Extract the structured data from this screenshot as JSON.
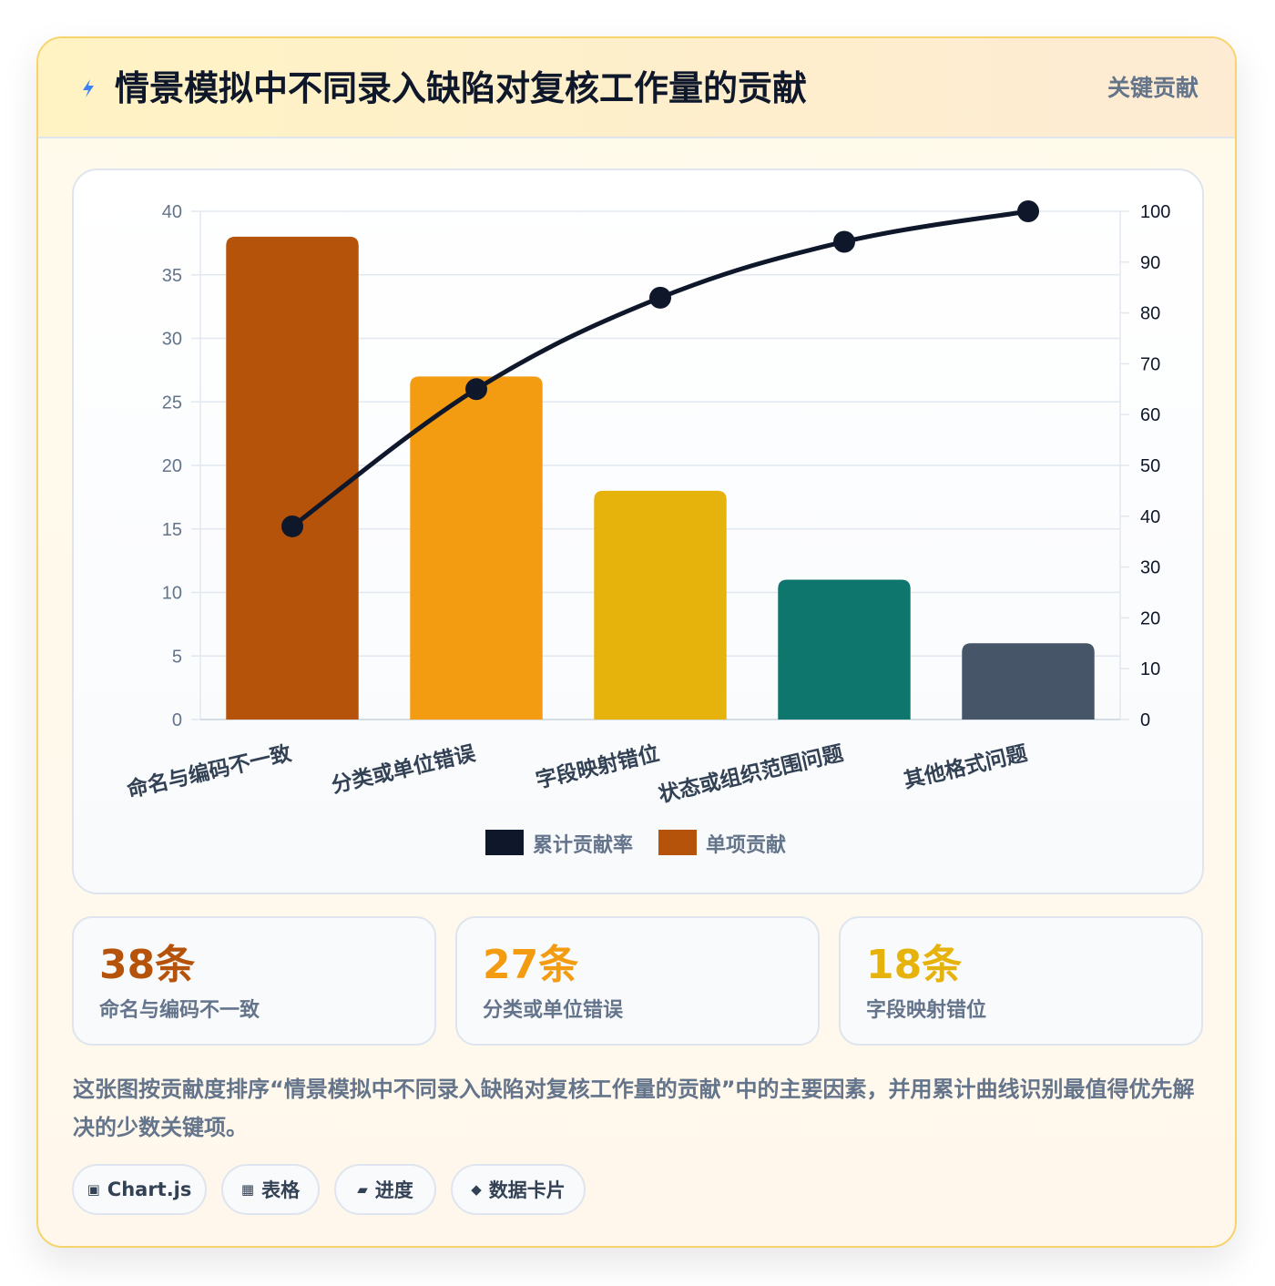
{
  "header": {
    "title": "情景模拟中不同录入缺陷对复核工作量的贡献",
    "badge": "关键贡献",
    "icon": "lightning-icon"
  },
  "chart_data": {
    "type": "bar",
    "categories": [
      "命名与编码不一致",
      "分类或单位错误",
      "字段映射错位",
      "状态或组织范围问题",
      "其他格式问题"
    ],
    "series": [
      {
        "name": "单项贡献",
        "type": "bar",
        "axis": "left",
        "values": [
          38,
          27,
          18,
          11,
          6
        ],
        "colors": [
          "#b45309",
          "#f39c12",
          "#e6b20c",
          "#0f766e",
          "#475569"
        ]
      },
      {
        "name": "累计贡献率",
        "type": "line",
        "axis": "right",
        "values": [
          38,
          65,
          83,
          94,
          100
        ],
        "color": "#0f172a"
      }
    ],
    "ylim_left": [
      0,
      40
    ],
    "yticks_left": [
      0,
      5,
      10,
      15,
      20,
      25,
      30,
      35,
      40
    ],
    "ylim_right": [
      0,
      100
    ],
    "yticks_right": [
      0,
      10,
      20,
      30,
      40,
      50,
      60,
      70,
      80,
      90,
      100
    ],
    "legend": [
      "累计贡献率",
      "单项贡献"
    ],
    "legend_position": "bottom",
    "grid": true
  },
  "stats": [
    {
      "value": "38条",
      "label": "命名与编码不一致",
      "color": "#b45309"
    },
    {
      "value": "27条",
      "label": "分类或单位错误",
      "color": "#f39c12"
    },
    {
      "value": "18条",
      "label": "字段映射错位",
      "color": "#e6b20c"
    }
  ],
  "description": "这张图按贡献度排序“情景模拟中不同录入缺陷对复核工作量的贡献”中的主要因素，并用累计曲线识别最值得优先解决的少数关键项。",
  "tags": [
    {
      "icon": "▣",
      "label": "Chart.js"
    },
    {
      "icon": "▦",
      "label": "表格"
    },
    {
      "icon": "▰",
      "label": "进度"
    },
    {
      "icon": "◆",
      "label": "数据卡片"
    }
  ]
}
